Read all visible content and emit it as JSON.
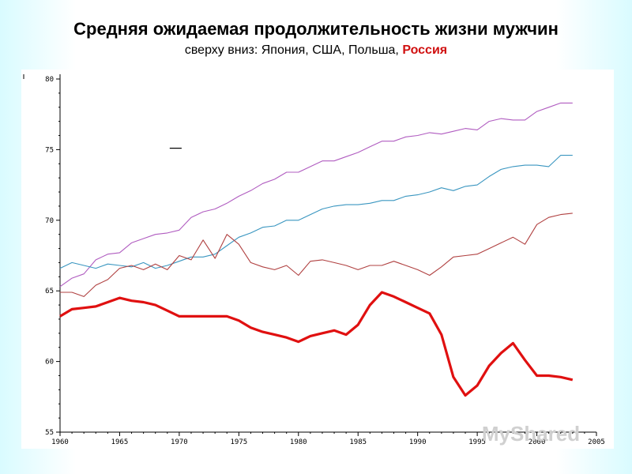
{
  "slide": {
    "title": "Средняя ожидаемая продолжительность жизни мужчин",
    "subtitle_prefix": "сверху вниз: Япония, США, Польша, ",
    "subtitle_highlight": "Россия"
  },
  "watermark": "MyShared",
  "chart_data": {
    "type": "line",
    "title": "Средняя ожидаемая продолжительность жизни мужчин",
    "xlabel": "",
    "ylabel": "",
    "xlim": [
      1960,
      2005
    ],
    "ylim": [
      55,
      80
    ],
    "x_ticks": [
      1960,
      1965,
      1970,
      1975,
      1980,
      1985,
      1990,
      1995,
      2000,
      2005
    ],
    "y_ticks": [
      55,
      60,
      65,
      70,
      75,
      80
    ],
    "series": [
      {
        "name": "Япония",
        "color": "#b05cc0",
        "x": [
          1960,
          1961,
          1962,
          1963,
          1964,
          1965,
          1966,
          1967,
          1968,
          1969,
          1970,
          1971,
          1972,
          1973,
          1974,
          1975,
          1976,
          1977,
          1978,
          1979,
          1980,
          1981,
          1982,
          1983,
          1984,
          1985,
          1986,
          1987,
          1988,
          1989,
          1990,
          1991,
          1992,
          1993,
          1994,
          1995,
          1996,
          1997,
          1998,
          1999,
          2000,
          2001,
          2002,
          2003
        ],
        "values": [
          65.3,
          65.9,
          66.2,
          67.2,
          67.6,
          67.7,
          68.4,
          68.7,
          69.0,
          69.1,
          69.3,
          70.2,
          70.6,
          70.8,
          71.2,
          71.7,
          72.1,
          72.6,
          72.9,
          73.4,
          73.4,
          73.8,
          74.2,
          74.2,
          74.5,
          74.8,
          75.2,
          75.6,
          75.6,
          75.9,
          76.0,
          76.2,
          76.1,
          76.3,
          76.5,
          76.4,
          77.0,
          77.2,
          77.1,
          77.1,
          77.7,
          78.0,
          78.3,
          78.3
        ]
      },
      {
        "name": "США",
        "color": "#3a96c0",
        "x": [
          1960,
          1961,
          1962,
          1963,
          1964,
          1965,
          1966,
          1967,
          1968,
          1969,
          1970,
          1971,
          1972,
          1973,
          1974,
          1975,
          1976,
          1977,
          1978,
          1979,
          1980,
          1981,
          1982,
          1983,
          1984,
          1985,
          1986,
          1987,
          1988,
          1989,
          1990,
          1991,
          1992,
          1993,
          1994,
          1995,
          1996,
          1997,
          1998,
          1999,
          2000,
          2001,
          2002,
          2003
        ],
        "values": [
          66.6,
          67.0,
          66.8,
          66.6,
          66.9,
          66.8,
          66.7,
          67.0,
          66.6,
          66.8,
          67.1,
          67.4,
          67.4,
          67.6,
          68.2,
          68.8,
          69.1,
          69.5,
          69.6,
          70.0,
          70.0,
          70.4,
          70.8,
          71.0,
          71.1,
          71.1,
          71.2,
          71.4,
          71.4,
          71.7,
          71.8,
          72.0,
          72.3,
          72.1,
          72.4,
          72.5,
          73.1,
          73.6,
          73.8,
          73.9,
          73.9,
          73.8,
          74.6,
          74.6
        ]
      },
      {
        "name": "Польша",
        "color": "#b04040",
        "x": [
          1960,
          1961,
          1962,
          1963,
          1964,
          1965,
          1966,
          1967,
          1968,
          1969,
          1970,
          1971,
          1972,
          1973,
          1974,
          1975,
          1976,
          1977,
          1978,
          1979,
          1980,
          1981,
          1982,
          1983,
          1984,
          1985,
          1986,
          1987,
          1988,
          1989,
          1990,
          1991,
          1992,
          1993,
          1994,
          1995,
          1996,
          1997,
          1998,
          1999,
          2000,
          2001,
          2002,
          2003
        ],
        "values": [
          64.9,
          64.9,
          64.6,
          65.4,
          65.8,
          66.6,
          66.8,
          66.5,
          66.9,
          66.5,
          67.5,
          67.2,
          68.6,
          67.3,
          69.0,
          68.3,
          67.0,
          66.7,
          66.5,
          66.8,
          66.1,
          67.1,
          67.2,
          67.0,
          66.8,
          66.5,
          66.8,
          66.8,
          67.1,
          66.8,
          66.5,
          66.1,
          66.7,
          67.4,
          67.5,
          67.6,
          68.0,
          68.4,
          68.8,
          68.3,
          69.7,
          70.2,
          70.4,
          70.5
        ]
      },
      {
        "name": "Россия",
        "color": "#e01010",
        "x": [
          1960,
          1961,
          1962,
          1963,
          1964,
          1965,
          1966,
          1967,
          1968,
          1969,
          1970,
          1971,
          1972,
          1973,
          1974,
          1975,
          1976,
          1977,
          1978,
          1979,
          1980,
          1981,
          1982,
          1983,
          1984,
          1985,
          1986,
          1987,
          1988,
          1989,
          1990,
          1991,
          1992,
          1993,
          1994,
          1995,
          1996,
          1997,
          1998,
          1999,
          2000,
          2001,
          2002,
          2003
        ],
        "values": [
          63.2,
          63.7,
          63.8,
          63.9,
          64.2,
          64.5,
          64.3,
          64.2,
          64.0,
          63.6,
          63.2,
          63.2,
          63.2,
          63.2,
          63.2,
          62.9,
          62.4,
          62.1,
          61.9,
          61.7,
          61.4,
          61.8,
          62.0,
          62.2,
          61.9,
          62.6,
          64.0,
          64.9,
          64.6,
          64.2,
          63.8,
          63.4,
          61.9,
          58.9,
          57.6,
          58.3,
          59.7,
          60.6,
          61.3,
          60.1,
          59.0,
          59.0,
          58.9,
          58.7
        ]
      }
    ]
  }
}
